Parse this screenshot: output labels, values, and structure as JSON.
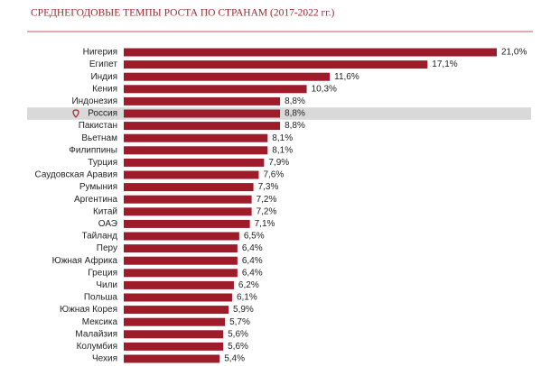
{
  "chart_data": {
    "type": "bar",
    "orientation": "horizontal",
    "title": "СРЕДНЕГОДОВЫЕ ТЕМПЫ РОСТА ПО СТРАНАМ (2017-2022 гг.)",
    "categories": [
      "Нигерия",
      "Египет",
      "Индия",
      "Кения",
      "Индонезия",
      "Россия",
      "Пакистан",
      "Вьетнам",
      "Филиппины",
      "Турция",
      "Саудовская Аравия",
      "Румыния",
      "Аргентина",
      "Китай",
      "ОАЭ",
      "Тайланд",
      "Перу",
      "Южная Африка",
      "Греция",
      "Чили",
      "Польша",
      "Южная Корея",
      "Мексика",
      "Малайзия",
      "Колумбия",
      "Чехия"
    ],
    "values": [
      21.0,
      17.1,
      11.6,
      10.3,
      8.8,
      8.8,
      8.8,
      8.1,
      8.1,
      7.9,
      7.6,
      7.3,
      7.2,
      7.2,
      7.1,
      6.5,
      6.4,
      6.4,
      6.4,
      6.2,
      6.1,
      5.9,
      5.7,
      5.6,
      5.6,
      5.4
    ],
    "value_labels": [
      "21,0%",
      "17,1%",
      "11,6%",
      "10,3%",
      "8,8%",
      "8,8%",
      "8,8%",
      "8,1%",
      "8,1%",
      "7,9%",
      "7,6%",
      "7,3%",
      "7,2%",
      "7,2%",
      "7,1%",
      "6,5%",
      "6,4%",
      "6,4%",
      "6,4%",
      "6,2%",
      "6,1%",
      "5,9%",
      "5,7%",
      "5,6%",
      "5,6%",
      "5,4%"
    ],
    "color": "#9e1b2a",
    "highlight": 5,
    "highlight_color": "#d9d9d9"
  }
}
